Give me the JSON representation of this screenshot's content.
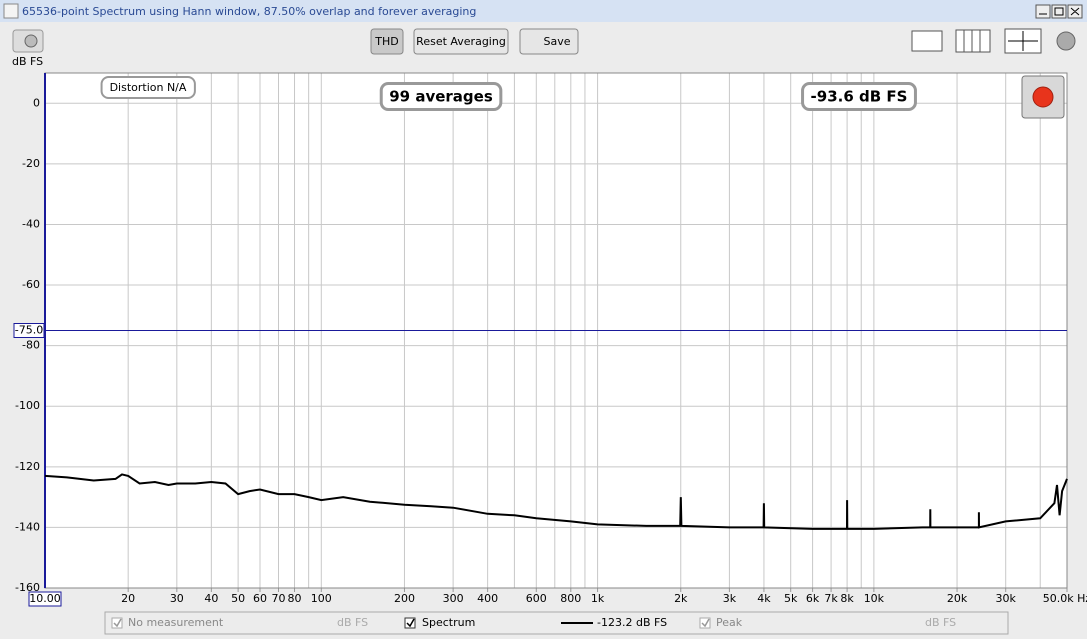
{
  "window": {
    "title": "65536-point Spectrum using Hann window, 87.50% overlap and forever averaging"
  },
  "toolbar": {
    "buttons": [
      "THD",
      "Reset Averaging",
      "Save"
    ]
  },
  "legend": {
    "items": [
      {
        "name": "No measurement",
        "unit": "dB FS"
      },
      {
        "name": "Peak",
        "unit": "dB FS"
      }
    ],
    "spectrum_reading": "-123.2 dB FS"
  },
  "chart_data": {
    "type": "line",
    "y_label": "dB FS",
    "log_x": true,
    "grid": true,
    "xlim": [
      10,
      50000
    ],
    "ylim": [
      -160,
      10
    ],
    "yticks": [
      0,
      -20,
      -40,
      -60,
      -80,
      -100,
      -120,
      -140,
      -160
    ],
    "xticks": [
      20,
      30,
      40,
      50,
      60,
      70,
      80,
      100,
      200,
      300,
      400,
      600,
      800,
      {
        "value": 1000,
        "label": "1k"
      },
      {
        "value": 2000,
        "label": "2k"
      },
      {
        "value": 3000,
        "label": "3k"
      },
      {
        "value": 4000,
        "label": "4k"
      },
      {
        "value": 5000,
        "label": "5k"
      },
      {
        "value": 6000,
        "label": "6k"
      },
      {
        "value": 7000,
        "label": "7k"
      },
      {
        "value": 8000,
        "label": "8k"
      },
      {
        "value": 10000,
        "label": "10k"
      },
      {
        "value": 20000,
        "label": "20k"
      },
      {
        "value": 30000,
        "label": "30k"
      },
      {
        "value": 50000,
        "label": "50.0k Hz"
      }
    ],
    "cursor_x": {
      "value": 10,
      "label": "10.00"
    },
    "cursor_y": {
      "value": -75,
      "label": "-75.0"
    },
    "annotations": [
      "Distortion N/A",
      "99 averages",
      "-93.6 dB FS"
    ],
    "series": [
      {
        "name": "Spectrum",
        "color": "#000000",
        "x": [
          10,
          12,
          15,
          18,
          19,
          20,
          22,
          25,
          28,
          30,
          35,
          40,
          45,
          50,
          55,
          60,
          70,
          80,
          90,
          100,
          120,
          150,
          200,
          250,
          300,
          400,
          500,
          600,
          800,
          1000,
          1500,
          1990,
          2000,
          2010,
          3000,
          3990,
          4000,
          4010,
          6000,
          7990,
          8000,
          8010,
          10000,
          15000,
          15990,
          16000,
          16010,
          20000,
          23990,
          24000,
          24010,
          30000,
          40000,
          45000,
          46000,
          47000,
          48000,
          50000
        ],
        "values": [
          -123,
          -123.5,
          -124.5,
          -124,
          -122.5,
          -123,
          -125.5,
          -125,
          -126,
          -125.5,
          -125.5,
          -125,
          -125.5,
          -129,
          -128,
          -127.5,
          -129,
          -129,
          -130,
          -131,
          -130,
          -131.5,
          -132.5,
          -133,
          -133.5,
          -135.5,
          -136,
          -137,
          -138,
          -139,
          -139.5,
          -139.5,
          -130,
          -139.5,
          -140,
          -140,
          -132,
          -140,
          -140.5,
          -140.5,
          -131,
          -140.5,
          -140.5,
          -140,
          -140,
          -134,
          -140,
          -140,
          -140,
          -135,
          -140,
          -138,
          -137,
          -132,
          -126,
          -136,
          -128,
          -124
        ]
      }
    ]
  }
}
